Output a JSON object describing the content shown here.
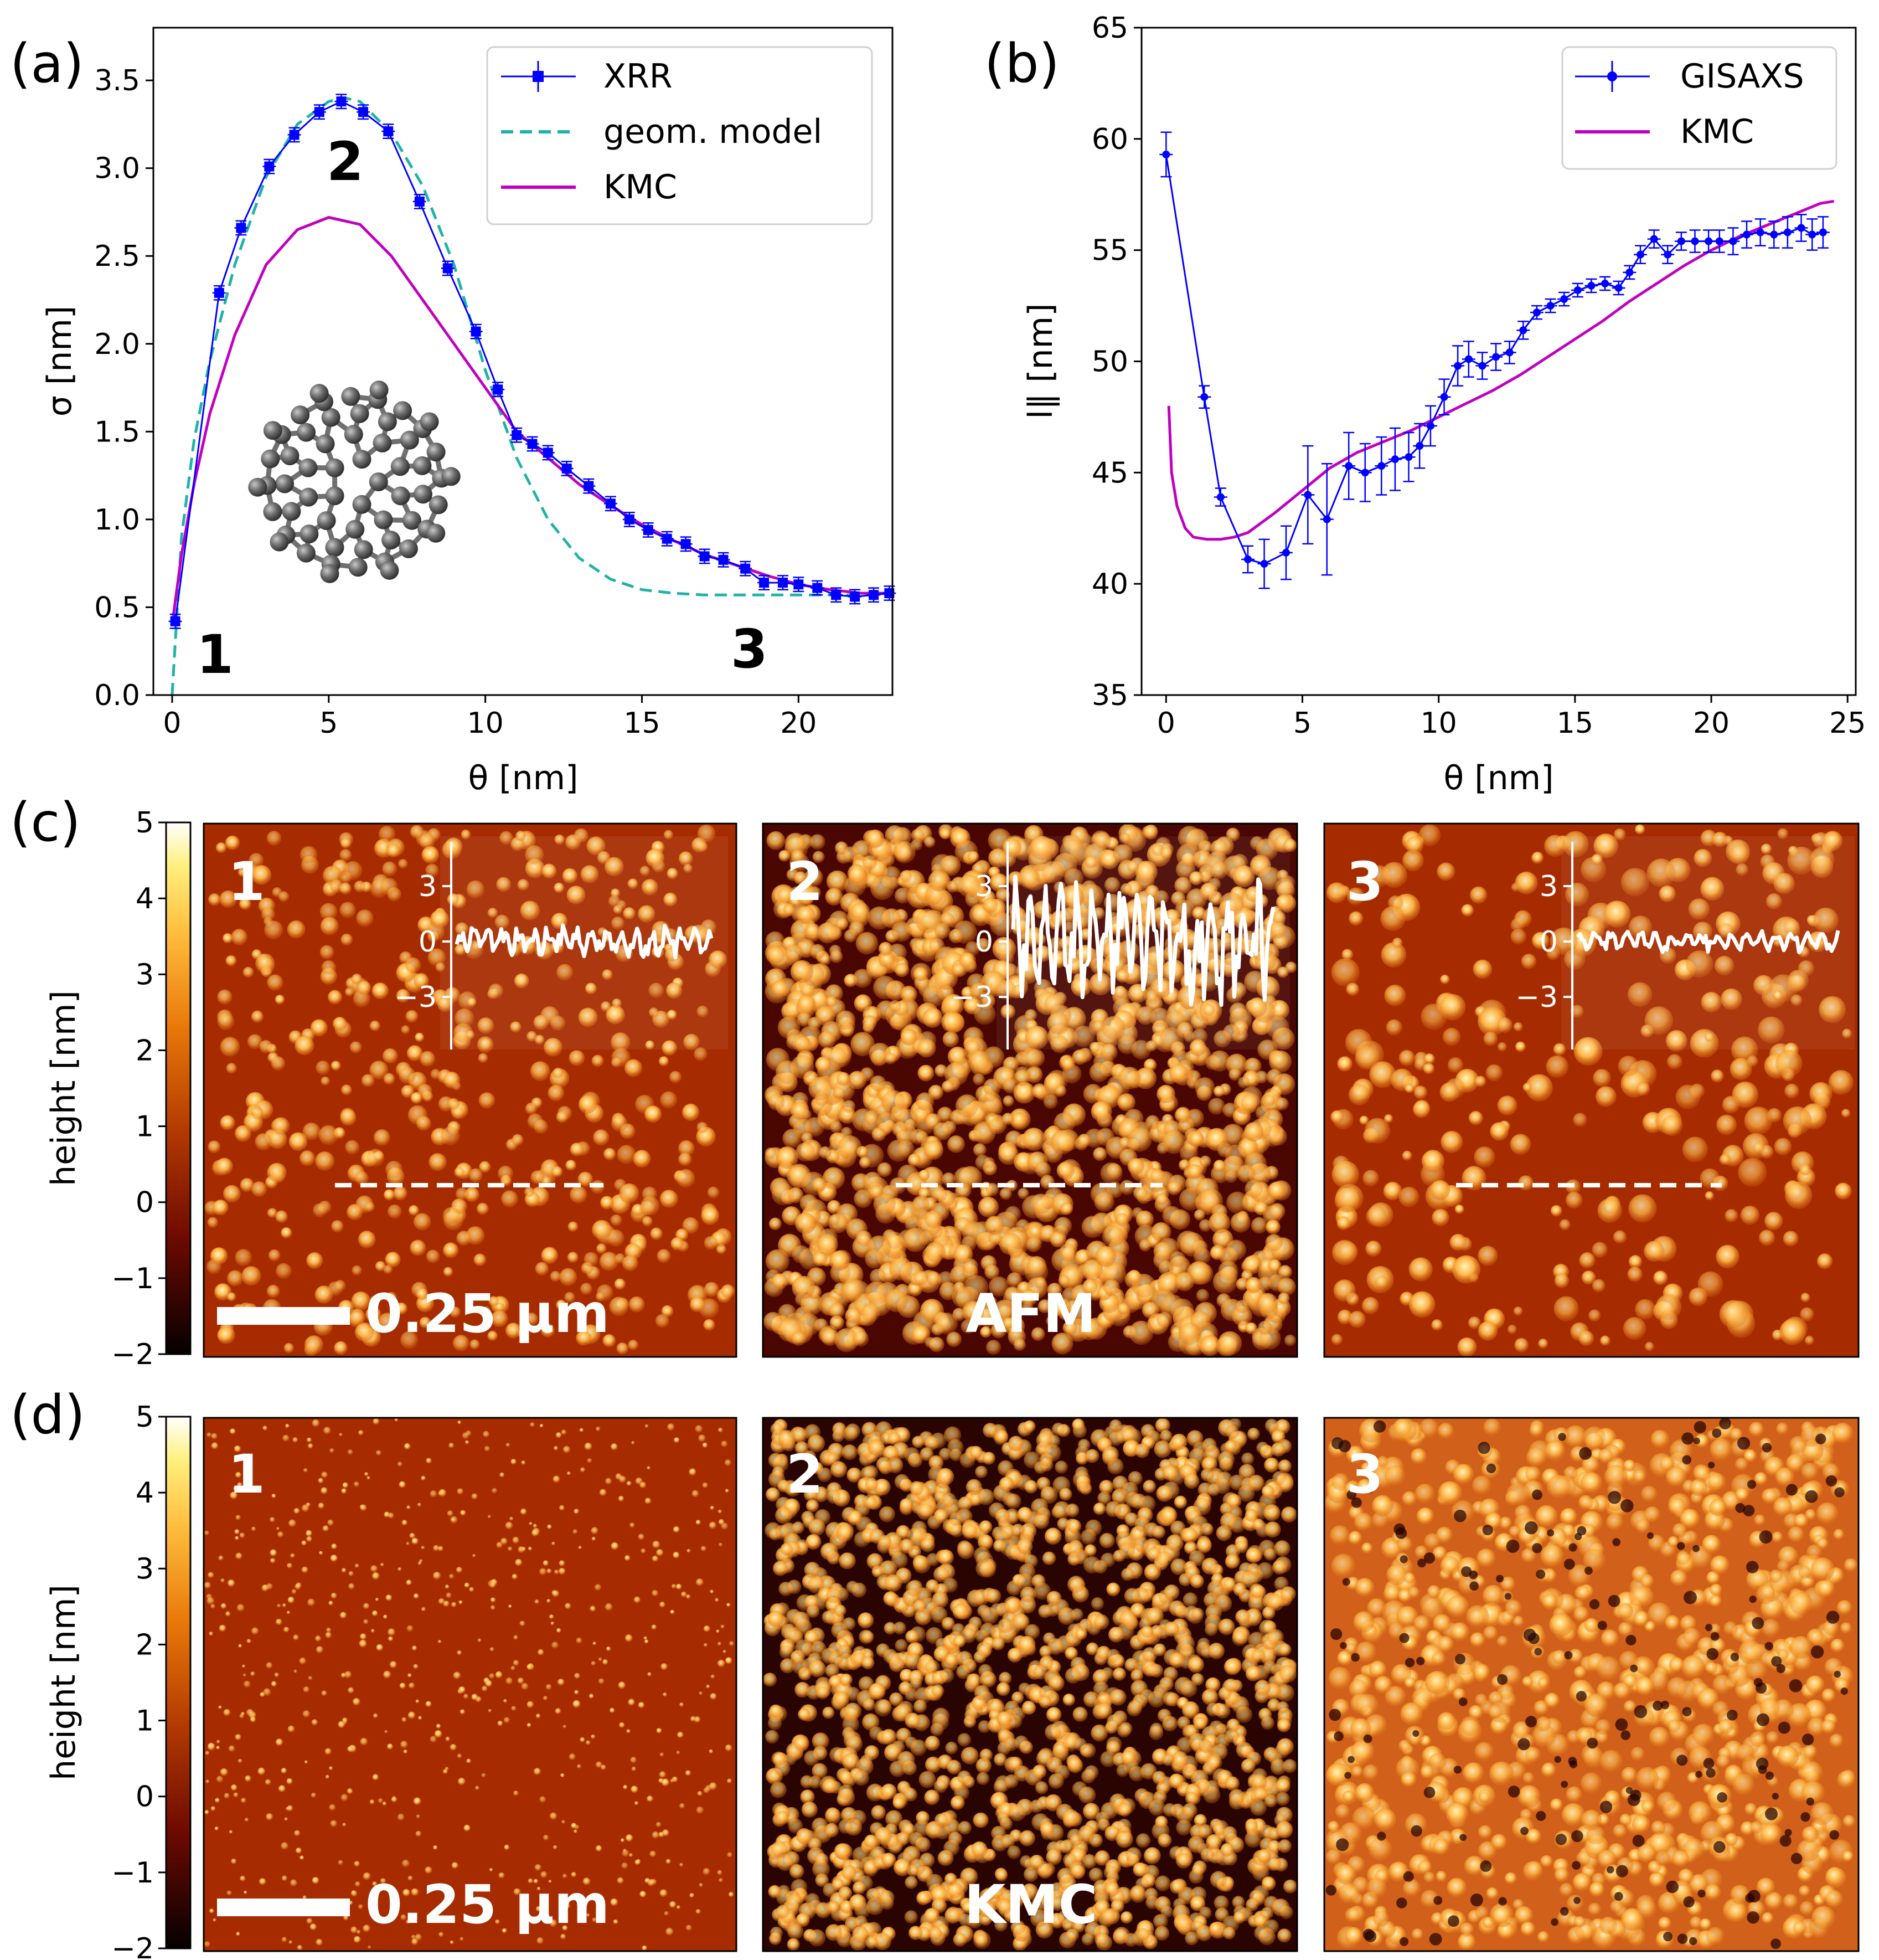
{
  "chart_data": [
    {
      "panel": "(a)",
      "type": "line",
      "xlabel": "θ [nm]",
      "ylabel": "σ [nm]",
      "xlim": [
        -0.6,
        23
      ],
      "ylim": [
        0,
        3.8
      ],
      "xticks": [
        "0",
        "5",
        "10",
        "15",
        "20"
      ],
      "yticks": [
        "0.0",
        "0.5",
        "1.0",
        "1.5",
        "2.0",
        "2.5",
        "3.0",
        "3.5"
      ],
      "legend_position": "top-right",
      "regime_labels": [
        "1",
        "2",
        "3"
      ],
      "series": [
        {
          "name": "XRR",
          "color": "#0000ff",
          "x": [
            0.1,
            1.5,
            2.2,
            3.1,
            3.9,
            4.7,
            5.4,
            6.1,
            6.9,
            7.9,
            8.8,
            9.7,
            10.4,
            11.0,
            11.5,
            12.0,
            12.6,
            13.3,
            14.0,
            14.6,
            15.2,
            15.8,
            16.4,
            17.0,
            17.6,
            18.3,
            18.9,
            19.5,
            20.0,
            20.6,
            21.2,
            21.8,
            22.4,
            22.9
          ],
          "y": [
            0.42,
            2.29,
            2.66,
            3.01,
            3.19,
            3.32,
            3.38,
            3.32,
            3.21,
            2.81,
            2.43,
            2.07,
            1.74,
            1.48,
            1.43,
            1.38,
            1.29,
            1.19,
            1.09,
            1.0,
            0.94,
            0.89,
            0.86,
            0.79,
            0.77,
            0.72,
            0.64,
            0.64,
            0.63,
            0.61,
            0.57,
            0.56,
            0.57,
            0.58
          ]
        },
        {
          "name": "geom. model",
          "color": "#20b2aa",
          "x": [
            0,
            0.3,
            0.7,
            1.2,
            2.0,
            3.0,
            4.0,
            5.0,
            5.5,
            6.0,
            7.0,
            8.0,
            9.0,
            10.0,
            11.0,
            12.0,
            13.0,
            14.0,
            15.0,
            16.0,
            17.0,
            18.0,
            19.0,
            20.0,
            21.0,
            22.0,
            23.0
          ],
          "y": [
            0.0,
            0.9,
            1.45,
            1.9,
            2.45,
            2.95,
            3.25,
            3.38,
            3.4,
            3.38,
            3.2,
            2.9,
            2.45,
            1.85,
            1.35,
            1.0,
            0.78,
            0.66,
            0.6,
            0.58,
            0.57,
            0.57,
            0.57,
            0.57,
            0.57,
            0.57,
            0.57
          ]
        },
        {
          "name": "KMC",
          "color": "#c000c0",
          "x": [
            0,
            0.3,
            0.7,
            1.2,
            2.0,
            3.0,
            4.0,
            5.0,
            6.0,
            7.0,
            8.0,
            9.0,
            10.0,
            11.0,
            12.0,
            13.0,
            14.0,
            15.0,
            16.0,
            17.0,
            18.0,
            19.0,
            20.0,
            21.0,
            22.0,
            23.0
          ],
          "y": [
            0.4,
            0.8,
            1.2,
            1.6,
            2.05,
            2.45,
            2.65,
            2.72,
            2.68,
            2.5,
            2.25,
            2.0,
            1.75,
            1.5,
            1.35,
            1.2,
            1.08,
            0.97,
            0.88,
            0.8,
            0.74,
            0.68,
            0.63,
            0.6,
            0.58,
            0.58
          ]
        }
      ]
    },
    {
      "panel": "(b)",
      "type": "line",
      "xlabel": "θ [nm]",
      "ylabel": "l‖ [nm]",
      "xlim": [
        -0.9,
        25.3
      ],
      "ylim": [
        35,
        65
      ],
      "xticks": [
        "0",
        "5",
        "10",
        "15",
        "20",
        "25"
      ],
      "yticks": [
        "35",
        "40",
        "45",
        "50",
        "55",
        "60",
        "65"
      ],
      "legend_position": "top-right",
      "series": [
        {
          "name": "GISAXS",
          "color": "#0000ff",
          "x": [
            0.0,
            1.4,
            2.0,
            3.0,
            3.6,
            4.4,
            5.2,
            5.9,
            6.7,
            7.3,
            7.9,
            8.4,
            8.9,
            9.3,
            9.7,
            10.2,
            10.7,
            11.1,
            11.6,
            12.1,
            12.6,
            13.1,
            13.6,
            14.1,
            14.6,
            15.1,
            15.6,
            16.1,
            16.6,
            17.0,
            17.4,
            17.9,
            18.4,
            18.9,
            19.4,
            19.9,
            20.3,
            20.8,
            21.3,
            21.8,
            22.3,
            22.8,
            23.3,
            23.7,
            24.1
          ],
          "y": [
            59.3,
            48.4,
            43.9,
            41.1,
            40.9,
            41.4,
            44.0,
            42.9,
            45.3,
            45.0,
            45.3,
            45.6,
            45.7,
            46.2,
            47.1,
            48.4,
            49.8,
            50.1,
            49.8,
            50.2,
            50.4,
            51.4,
            52.2,
            52.5,
            52.8,
            53.2,
            53.4,
            53.5,
            53.3,
            54.0,
            54.8,
            55.5,
            54.8,
            55.4,
            55.4,
            55.4,
            55.4,
            55.4,
            55.7,
            55.8,
            55.7,
            55.8,
            56.0,
            55.7,
            55.8
          ]
        },
        {
          "name": "KMC",
          "color": "#c000c0",
          "x": [
            0.1,
            0.2,
            0.4,
            0.7,
            1.0,
            1.5,
            2.0,
            2.5,
            3.0,
            4.0,
            5.0,
            6.0,
            7.0,
            8.0,
            9.0,
            10.0,
            11.0,
            12.0,
            13.0,
            14.0,
            15.0,
            16.0,
            17.0,
            18.0,
            19.0,
            20.0,
            21.0,
            22.0,
            23.0,
            24.0,
            24.5
          ],
          "y": [
            48.0,
            45.0,
            43.5,
            42.5,
            42.1,
            42.0,
            42.0,
            42.1,
            42.3,
            43.2,
            44.2,
            45.2,
            45.9,
            46.4,
            46.9,
            47.5,
            48.1,
            48.7,
            49.4,
            50.2,
            51.0,
            51.8,
            52.7,
            53.5,
            54.3,
            55.0,
            55.6,
            56.1,
            56.6,
            57.1,
            57.2
          ]
        }
      ]
    }
  ],
  "panel_labels": {
    "a": "(a)",
    "b": "(b)",
    "c": "(c)",
    "d": "(d)"
  },
  "colorbar": {
    "label": "height [nm]",
    "ticks": [
      "5",
      "4",
      "3",
      "2",
      "1",
      "0",
      "−1",
      "−2"
    ]
  },
  "images_c": {
    "labels": [
      "1",
      "2",
      "3"
    ],
    "scalebar": "0.25 μm",
    "method": "AFM",
    "inset_ticks": [
      "3",
      "0",
      "−3"
    ]
  },
  "images_d": {
    "labels": [
      "1",
      "2",
      "3"
    ],
    "scalebar": "0.25 μm",
    "method": "KMC"
  },
  "colors": {
    "xrr": "#0000ff",
    "geom": "#20b2aa",
    "kmc": "#c000c0"
  }
}
